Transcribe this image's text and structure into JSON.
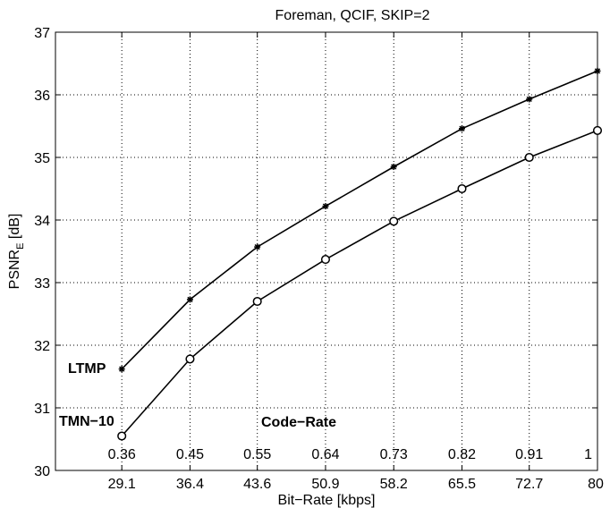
{
  "chart_data": {
    "type": "line",
    "title": "Foreman, QCIF, SKIP=2",
    "xlabel": "Bit−Rate [kbps]",
    "ylabel": {
      "main": "PSNR",
      "sub": "E",
      "unit": " [dB]"
    },
    "xlim": [
      22,
      80
    ],
    "ylim": [
      30,
      37
    ],
    "x_ticks": [
      29.1,
      36.4,
      43.6,
      50.9,
      58.2,
      65.5,
      72.7,
      80
    ],
    "x_tick_labels": [
      "29.1",
      "36.4",
      "43.6",
      "50.9",
      "58.2",
      "65.5",
      "72.7",
      "80"
    ],
    "y_ticks": [
      30,
      31,
      32,
      33,
      34,
      35,
      36,
      37
    ],
    "y_tick_labels": [
      "30",
      "31",
      "32",
      "33",
      "34",
      "35",
      "36",
      "37"
    ],
    "grid": true,
    "code_rate_title": "Code−Rate",
    "code_rates": [
      "0.36",
      "0.45",
      "0.55",
      "0.64",
      "0.73",
      "0.82",
      "0.91",
      "1"
    ],
    "series": [
      {
        "name": "LTMP",
        "marker": "star",
        "x": [
          29.1,
          36.4,
          43.6,
          50.9,
          58.2,
          65.5,
          72.7,
          80
        ],
        "y": [
          31.62,
          32.73,
          33.57,
          34.22,
          34.85,
          35.46,
          35.93,
          36.38
        ]
      },
      {
        "name": "TMN−10",
        "marker": "circle",
        "x": [
          29.1,
          36.4,
          43.6,
          50.9,
          58.2,
          65.5,
          72.7,
          80
        ],
        "y": [
          30.55,
          31.78,
          32.7,
          33.37,
          33.98,
          34.5,
          35.0,
          35.43
        ]
      }
    ]
  }
}
